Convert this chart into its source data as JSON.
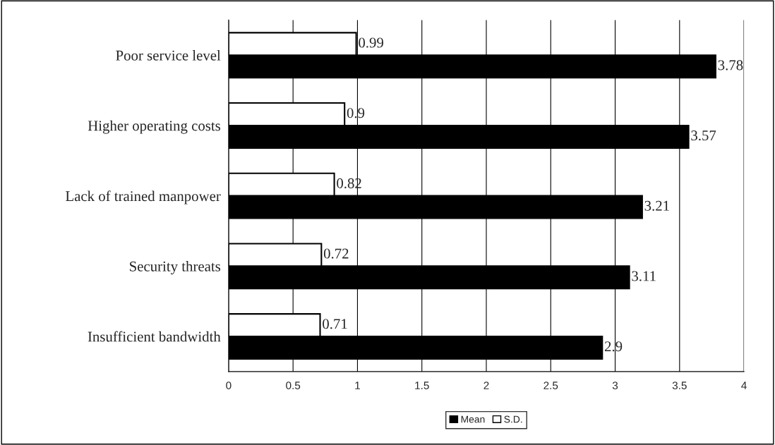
{
  "chart_data": {
    "type": "bar",
    "orientation": "horizontal",
    "categories": [
      "Poor service level",
      "Higher operating costs",
      "Lack of trained manpower",
      "Security threats",
      "Insufficient bandwidth"
    ],
    "series": [
      {
        "name": "Mean",
        "color": "#000000",
        "values": [
          3.78,
          3.57,
          3.21,
          3.11,
          2.9
        ]
      },
      {
        "name": "S.D.",
        "color": "#ffffff",
        "values": [
          0.99,
          0.9,
          0.82,
          0.72,
          0.71
        ]
      }
    ],
    "xlim": [
      0,
      4
    ],
    "xticks": [
      0,
      0.5,
      1,
      1.5,
      2,
      2.5,
      3,
      3.5,
      4
    ],
    "grid": "x",
    "legend": "bottom",
    "data_labels": true
  }
}
